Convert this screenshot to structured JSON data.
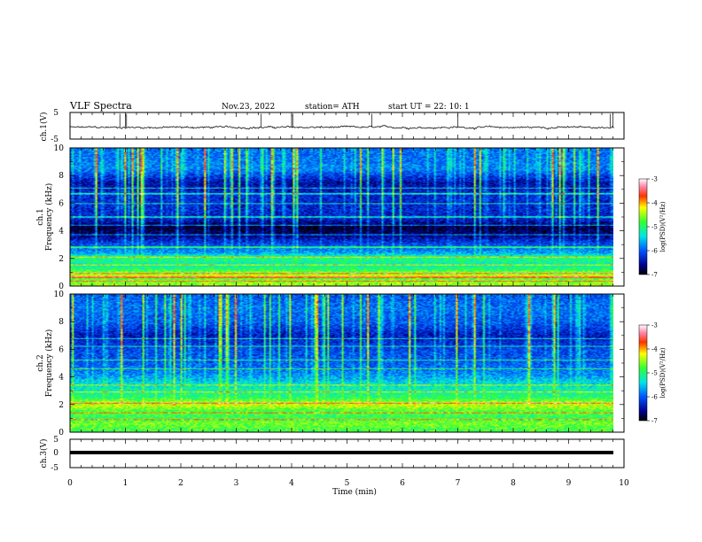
{
  "header": {
    "title": "VLF  Spectra",
    "date": "Nov.23, 2022",
    "station": "station= ATH",
    "start": "start  UT  =    22: 10: 1"
  },
  "chart_data": [
    {
      "type": "line",
      "name": "ch1-waveform",
      "ylabel": "ch.1(V)",
      "ylim": [
        -5,
        5
      ],
      "yticks": [
        "5",
        "-5"
      ],
      "xlim": [
        0,
        10
      ],
      "approx_level": -0.6,
      "noise_amplitude": 0.5,
      "spike_times": [
        0.9,
        1.0,
        1.02,
        3.45,
        4.0,
        4.02,
        5.45,
        7.0,
        9.75,
        9.8
      ]
    },
    {
      "type": "heatmap",
      "name": "ch1-spectrogram",
      "ylabel": "ch.1\nFrequency  (kHz)",
      "ylim": [
        0,
        10
      ],
      "yticks": [
        "0",
        "2",
        "4",
        "6",
        "8",
        "10"
      ],
      "xlim": [
        0,
        10
      ],
      "colorbar": {
        "label": "log(PSD)(V²/Hz)",
        "ticks": [
          "-3",
          "-4",
          "-5",
          "-6",
          "-7"
        ],
        "range": [
          -7,
          -3
        ]
      },
      "profile_log_psd": [
        {
          "f": 0.2,
          "v": -4.5
        },
        {
          "f": 0.5,
          "v": -4.7
        },
        {
          "f": 0.8,
          "v": -4.3
        },
        {
          "f": 1.2,
          "v": -5.0
        },
        {
          "f": 1.6,
          "v": -5.2
        },
        {
          "f": 2.0,
          "v": -5.0
        },
        {
          "f": 2.4,
          "v": -5.7
        },
        {
          "f": 3.0,
          "v": -6.1
        },
        {
          "f": 3.6,
          "v": -6.6
        },
        {
          "f": 4.2,
          "v": -6.9
        },
        {
          "f": 4.8,
          "v": -6.4
        },
        {
          "f": 5.5,
          "v": -6.3
        },
        {
          "f": 6.5,
          "v": -6.3
        },
        {
          "f": 7.5,
          "v": -6.5
        },
        {
          "f": 8.5,
          "v": -5.8
        },
        {
          "f": 9.5,
          "v": -5.9
        }
      ],
      "line_frequencies_khz": [
        0.3,
        0.6,
        0.9,
        1.5,
        2.1,
        2.8,
        3.7,
        4.4,
        5.0,
        6.0,
        6.7,
        7.1
      ]
    },
    {
      "type": "heatmap",
      "name": "ch2-spectrogram",
      "ylabel": "ch.2\nFrequency  (kHz)",
      "ylim": [
        0,
        10
      ],
      "yticks": [
        "0",
        "2",
        "4",
        "6",
        "8",
        "10"
      ],
      "xlim": [
        0,
        10
      ],
      "colorbar": {
        "label": "log(PSD)(V²/Hz)",
        "ticks": [
          "-3",
          "-4",
          "-5",
          "-6",
          "-7"
        ],
        "range": [
          -7,
          -3
        ]
      },
      "profile_log_psd": [
        {
          "f": 0.2,
          "v": -4.8
        },
        {
          "f": 0.6,
          "v": -4.6
        },
        {
          "f": 1.0,
          "v": -4.9
        },
        {
          "f": 1.6,
          "v": -4.7
        },
        {
          "f": 2.0,
          "v": -4.3
        },
        {
          "f": 2.5,
          "v": -5.0
        },
        {
          "f": 3.0,
          "v": -5.2
        },
        {
          "f": 3.5,
          "v": -5.4
        },
        {
          "f": 4.2,
          "v": -5.8
        },
        {
          "f": 5.0,
          "v": -6.0
        },
        {
          "f": 6.0,
          "v": -6.1
        },
        {
          "f": 7.0,
          "v": -6.4
        },
        {
          "f": 8.0,
          "v": -6.0
        },
        {
          "f": 9.0,
          "v": -5.9
        },
        {
          "f": 9.8,
          "v": -6.0
        }
      ],
      "line_frequencies_khz": [
        0.9,
        1.4,
        2.1,
        2.9,
        3.4,
        4.6,
        5.2,
        6.2,
        6.8
      ]
    },
    {
      "type": "line",
      "name": "ch3-waveform",
      "ylabel": "ch.3(V)",
      "ylim": [
        -5,
        5
      ],
      "yticks": [
        "5",
        "0",
        "-5"
      ],
      "xlim": [
        0,
        10
      ],
      "approx_level": -0.5
    }
  ],
  "xaxis": {
    "label": "Time  (min)",
    "ticks": [
      "0",
      "1",
      "2",
      "3",
      "4",
      "5",
      "6",
      "7",
      "8",
      "9",
      "10"
    ]
  }
}
